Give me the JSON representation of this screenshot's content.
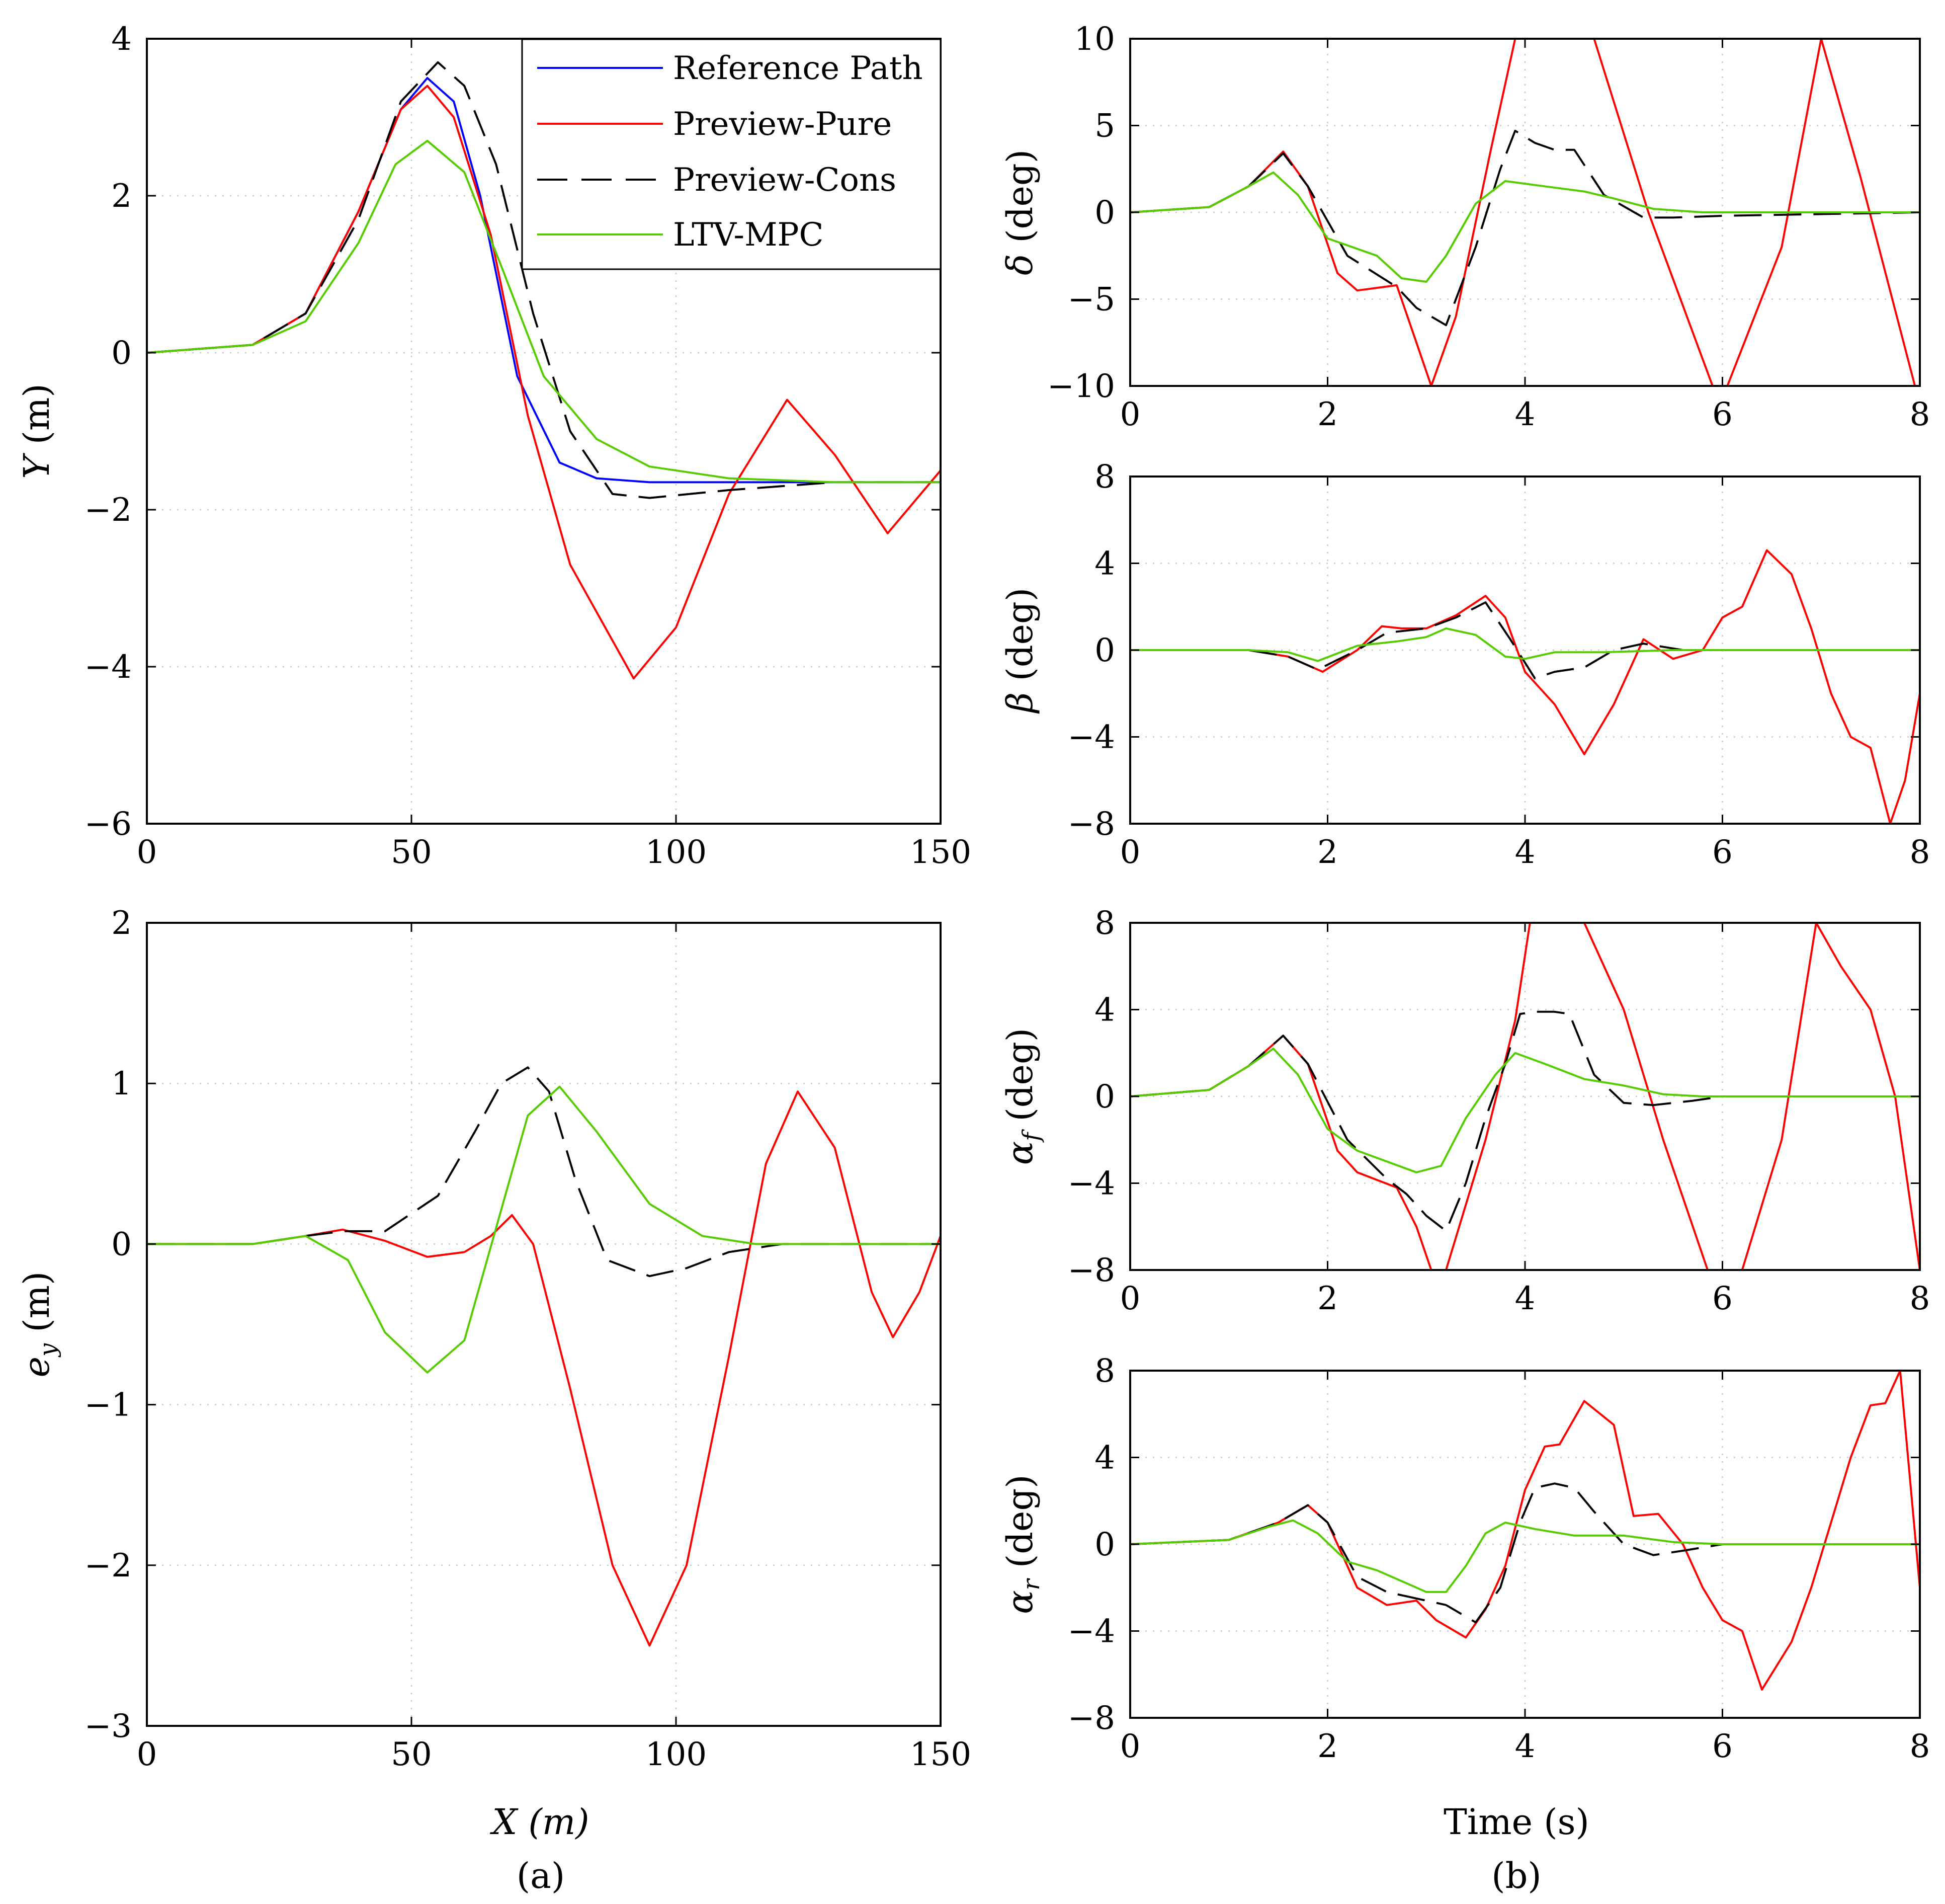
{
  "legend": {
    "entries": [
      {
        "label": "Reference Path",
        "color": "#0000ff",
        "dash": false
      },
      {
        "label": "Preview-Pure",
        "color": "#ff0000",
        "dash": false
      },
      {
        "label": "Preview-Cons",
        "color": "#000000",
        "dash": true
      },
      {
        "label": "LTV-MPC",
        "color": "#55cc00",
        "dash": false
      }
    ]
  },
  "subcaptions": {
    "a": "(a)",
    "b": "(b)"
  },
  "xlabel_left": "X (m)",
  "xlabel_right": "Time (s)",
  "chart_data": [
    {
      "id": "Y_vs_X",
      "type": "line",
      "xlabel": "",
      "ylabel": "Y (m)",
      "xlim": [
        0,
        150
      ],
      "ylim": [
        -6,
        4
      ],
      "xticks": [
        0,
        50,
        100,
        150
      ],
      "yticks": [
        -6,
        -4,
        -2,
        0,
        2,
        4
      ],
      "series": [
        {
          "name": "Reference Path",
          "x": [
            0,
            20,
            30,
            40,
            48,
            53,
            58,
            63,
            70,
            78,
            85,
            95,
            110,
            150
          ],
          "y": [
            0,
            0.1,
            0.5,
            1.8,
            3.1,
            3.5,
            3.2,
            2.0,
            -0.3,
            -1.4,
            -1.6,
            -1.65,
            -1.65,
            -1.65
          ]
        },
        {
          "name": "Preview-Pure",
          "x": [
            0,
            20,
            30,
            40,
            48,
            53,
            58,
            65,
            72,
            80,
            92,
            100,
            110,
            121,
            130,
            140,
            150
          ],
          "y": [
            0,
            0.1,
            0.5,
            1.8,
            3.1,
            3.4,
            3.0,
            1.5,
            -0.8,
            -2.7,
            -4.15,
            -3.5,
            -1.8,
            -0.6,
            -1.3,
            -2.3,
            -1.5
          ]
        },
        {
          "name": "Preview-Cons",
          "x": [
            0,
            20,
            30,
            40,
            48,
            55,
            60,
            66,
            73,
            80,
            88,
            95,
            110,
            130,
            150
          ],
          "y": [
            0,
            0.1,
            0.5,
            1.7,
            3.2,
            3.7,
            3.4,
            2.4,
            0.5,
            -1.0,
            -1.8,
            -1.85,
            -1.75,
            -1.65,
            -1.65
          ]
        },
        {
          "name": "LTV-MPC",
          "x": [
            0,
            20,
            30,
            40,
            47,
            53,
            60,
            67,
            75,
            85,
            95,
            110,
            130,
            150
          ],
          "y": [
            0,
            0.1,
            0.4,
            1.4,
            2.4,
            2.7,
            2.3,
            1.1,
            -0.3,
            -1.1,
            -1.45,
            -1.6,
            -1.65,
            -1.65
          ]
        }
      ]
    },
    {
      "id": "ey_vs_X",
      "type": "line",
      "xlabel": "X (m)",
      "ylabel": "e_y (m)",
      "xlim": [
        0,
        150
      ],
      "ylim": [
        -3,
        2
      ],
      "xticks": [
        0,
        50,
        100,
        150
      ],
      "yticks": [
        -3,
        -2,
        -1,
        0,
        1,
        2
      ],
      "series": [
        {
          "name": "Preview-Pure",
          "x": [
            0,
            20,
            30,
            37,
            45,
            53,
            60,
            65,
            69,
            73,
            80,
            88,
            95,
            102,
            110,
            117,
            123,
            130,
            137,
            141,
            146,
            150
          ],
          "y": [
            0,
            0,
            0.05,
            0.09,
            0.02,
            -0.08,
            -0.05,
            0.05,
            0.18,
            0.0,
            -0.9,
            -2.0,
            -2.5,
            -2.0,
            -0.7,
            0.5,
            0.95,
            0.6,
            -0.3,
            -0.58,
            -0.3,
            0.05
          ]
        },
        {
          "name": "Preview-Cons",
          "x": [
            0,
            20,
            30,
            37,
            45,
            55,
            62,
            67,
            72,
            76,
            81,
            87,
            95,
            102,
            110,
            120,
            135,
            150
          ],
          "y": [
            0,
            0,
            0.05,
            0.08,
            0.08,
            0.3,
            0.7,
            1.0,
            1.1,
            0.95,
            0.4,
            -0.1,
            -0.2,
            -0.15,
            -0.05,
            0,
            0,
            0
          ]
        },
        {
          "name": "LTV-MPC",
          "x": [
            0,
            20,
            30,
            38,
            45,
            53,
            60,
            66,
            72,
            78,
            85,
            95,
            105,
            115,
            130,
            150
          ],
          "y": [
            0,
            0,
            0.05,
            -0.1,
            -0.55,
            -0.8,
            -0.6,
            0.1,
            0.8,
            0.98,
            0.7,
            0.25,
            0.05,
            0,
            0,
            0
          ]
        }
      ]
    },
    {
      "id": "delta_vs_t",
      "type": "line",
      "xlabel": "",
      "ylabel": "δ (deg)",
      "xlim": [
        0,
        8
      ],
      "ylim": [
        -10,
        10
      ],
      "xticks": [
        0,
        2,
        4,
        6,
        8
      ],
      "yticks": [
        -10,
        -5,
        0,
        5,
        10
      ],
      "series": [
        {
          "name": "Preview-Pure",
          "x": [
            0,
            0.8,
            1.2,
            1.55,
            1.8,
            2.1,
            2.3,
            2.7,
            2.9,
            3.05,
            3.3,
            3.65,
            3.9,
            4.7,
            5.25,
            5.9,
            6.05,
            6.6,
            7.0,
            7.4,
            7.95
          ],
          "y": [
            0,
            0.3,
            1.5,
            3.5,
            1.5,
            -3.5,
            -4.5,
            -4.2,
            -7.5,
            -10,
            -6,
            3.5,
            10,
            10,
            0,
            -10,
            -10,
            -2,
            10,
            2,
            -10
          ]
        },
        {
          "name": "Preview-Cons",
          "x": [
            0,
            0.8,
            1.2,
            1.55,
            1.8,
            2.2,
            2.7,
            2.9,
            3.2,
            3.5,
            3.75,
            3.9,
            4.1,
            4.3,
            4.5,
            4.8,
            5.2,
            5.5,
            6.0,
            8.0
          ],
          "y": [
            0,
            0.3,
            1.5,
            3.4,
            1.5,
            -2.5,
            -4.3,
            -5.5,
            -6.5,
            -2,
            2.5,
            4.7,
            4,
            3.6,
            3.6,
            1,
            -0.3,
            -0.3,
            -0.2,
            0
          ]
        },
        {
          "name": "LTV-MPC",
          "x": [
            0,
            0.8,
            1.2,
            1.45,
            1.7,
            2.0,
            2.5,
            2.75,
            3.0,
            3.2,
            3.5,
            3.8,
            4.2,
            4.6,
            4.9,
            5.3,
            5.8,
            8.0
          ],
          "y": [
            0,
            0.3,
            1.5,
            2.3,
            1.0,
            -1.5,
            -2.5,
            -3.8,
            -4.0,
            -2.5,
            0.5,
            1.8,
            1.5,
            1.2,
            0.8,
            0.2,
            0,
            0
          ]
        }
      ]
    },
    {
      "id": "beta_vs_t",
      "type": "line",
      "xlabel": "",
      "ylabel": "β (deg)",
      "xlim": [
        0,
        8
      ],
      "ylim": [
        -8,
        8
      ],
      "xticks": [
        0,
        2,
        4,
        6,
        8
      ],
      "yticks": [
        -8,
        -4,
        0,
        4,
        8
      ],
      "series": [
        {
          "name": "Preview-Pure",
          "x": [
            0,
            1.2,
            1.6,
            1.95,
            2.3,
            2.55,
            2.75,
            3.0,
            3.3,
            3.6,
            3.8,
            4.0,
            4.2,
            4.3,
            4.6,
            4.9,
            5.2,
            5.5,
            5.8,
            6.0,
            6.2,
            6.45,
            6.7,
            6.9,
            7.1,
            7.3,
            7.5,
            7.7,
            7.85,
            8.0
          ],
          "y": [
            0,
            0,
            -0.3,
            -1.0,
            0,
            1.1,
            1.0,
            1.0,
            1.6,
            2.5,
            1.5,
            -1.0,
            -2.0,
            -2.5,
            -4.8,
            -2.5,
            0.5,
            -0.4,
            0,
            1.5,
            2.0,
            4.6,
            3.5,
            1.0,
            -2.0,
            -4.0,
            -4.5,
            -8,
            -6,
            -2
          ]
        },
        {
          "name": "Preview-Cons",
          "x": [
            0,
            1.2,
            1.6,
            1.9,
            2.3,
            2.6,
            3.0,
            3.3,
            3.6,
            3.85,
            4.1,
            4.3,
            4.6,
            4.9,
            5.2,
            5.6,
            6.0,
            8.0
          ],
          "y": [
            0,
            0,
            -0.3,
            -0.9,
            0,
            0.8,
            1.0,
            1.5,
            2.2,
            0.5,
            -1.3,
            -1.0,
            -0.8,
            0,
            0.3,
            0,
            0,
            0
          ]
        },
        {
          "name": "LTV-MPC",
          "x": [
            0,
            1.2,
            1.6,
            1.9,
            2.3,
            2.7,
            3.0,
            3.2,
            3.5,
            3.8,
            4.0,
            4.3,
            4.8,
            5.5,
            8.0
          ],
          "y": [
            0,
            0,
            -0.1,
            -0.5,
            0.2,
            0.4,
            0.6,
            1.0,
            0.7,
            -0.3,
            -0.4,
            -0.1,
            -0.1,
            0,
            0
          ]
        }
      ]
    },
    {
      "id": "alphaf_vs_t",
      "type": "line",
      "xlabel": "",
      "ylabel": "α_f (deg)",
      "xlim": [
        0,
        8
      ],
      "ylim": [
        -8,
        8
      ],
      "xticks": [
        0,
        2,
        4,
        6,
        8
      ],
      "yticks": [
        -8,
        -4,
        0,
        4,
        8
      ],
      "series": [
        {
          "name": "Preview-Pure",
          "x": [
            0,
            0.8,
            1.2,
            1.55,
            1.8,
            2.1,
            2.3,
            2.7,
            2.9,
            3.05,
            3.2,
            3.6,
            3.9,
            4.05,
            4.6,
            5.0,
            5.4,
            5.85,
            6.2,
            6.6,
            6.95,
            7.2,
            7.5,
            7.75,
            8.0
          ],
          "y": [
            0,
            0.3,
            1.4,
            2.8,
            1.5,
            -2.5,
            -3.5,
            -4.2,
            -6,
            -8,
            -8,
            -2,
            3.5,
            8,
            8,
            4,
            -2,
            -8,
            -8,
            -2,
            8,
            6,
            4,
            0,
            -8
          ]
        },
        {
          "name": "Preview-Cons",
          "x": [
            0,
            0.8,
            1.2,
            1.55,
            1.8,
            2.2,
            2.6,
            2.8,
            3.0,
            3.2,
            3.4,
            3.6,
            3.8,
            3.95,
            4.1,
            4.3,
            4.45,
            4.7,
            5.0,
            5.3,
            5.7,
            6.0,
            8.0
          ],
          "y": [
            0,
            0.3,
            1.4,
            2.8,
            1.5,
            -2.0,
            -3.8,
            -4.5,
            -5.5,
            -6.2,
            -4.0,
            -1.0,
            1.5,
            3.8,
            3.9,
            3.9,
            3.8,
            1.0,
            -0.3,
            -0.4,
            -0.2,
            0,
            0
          ]
        },
        {
          "name": "LTV-MPC",
          "x": [
            0,
            0.8,
            1.2,
            1.45,
            1.7,
            2.0,
            2.3,
            2.6,
            2.9,
            3.15,
            3.4,
            3.7,
            3.9,
            4.2,
            4.6,
            5.0,
            5.4,
            5.8,
            8.0
          ],
          "y": [
            0,
            0.3,
            1.4,
            2.2,
            1.0,
            -1.5,
            -2.5,
            -3.0,
            -3.5,
            -3.2,
            -1.0,
            1.0,
            2.0,
            1.5,
            0.8,
            0.5,
            0.1,
            0,
            0
          ]
        }
      ]
    },
    {
      "id": "alphar_vs_t",
      "type": "line",
      "xlabel": "Time (s)",
      "ylabel": "α_r (deg)",
      "xlim": [
        0,
        8
      ],
      "ylim": [
        -8,
        8
      ],
      "xticks": [
        0,
        2,
        4,
        6,
        8
      ],
      "yticks": [
        -8,
        -4,
        0,
        4,
        8
      ],
      "series": [
        {
          "name": "Preview-Pure",
          "x": [
            0,
            1.0,
            1.5,
            1.8,
            2.0,
            2.3,
            2.6,
            2.9,
            3.1,
            3.4,
            3.6,
            3.8,
            4.0,
            4.2,
            4.35,
            4.6,
            4.9,
            5.1,
            5.35,
            5.6,
            5.8,
            6.0,
            6.2,
            6.4,
            6.7,
            6.9,
            7.1,
            7.3,
            7.5,
            7.65,
            7.8,
            8.0
          ],
          "y": [
            0,
            0.2,
            1.0,
            1.8,
            1.0,
            -2.0,
            -2.8,
            -2.6,
            -3.5,
            -4.3,
            -3.0,
            -1.0,
            2.5,
            4.5,
            4.6,
            6.6,
            5.5,
            1.3,
            1.4,
            0,
            -2.0,
            -3.5,
            -4.0,
            -6.7,
            -4.5,
            -2.0,
            1.0,
            4.0,
            6.4,
            6.5,
            8,
            -2
          ]
        },
        {
          "name": "Preview-Cons",
          "x": [
            0,
            1.0,
            1.5,
            1.8,
            2.0,
            2.3,
            2.6,
            2.9,
            3.2,
            3.5,
            3.75,
            3.95,
            4.1,
            4.3,
            4.5,
            4.7,
            5.0,
            5.3,
            5.6,
            6.0,
            8.0
          ],
          "y": [
            0,
            0.2,
            1.0,
            1.8,
            1.0,
            -1.5,
            -2.2,
            -2.5,
            -2.8,
            -3.6,
            -2.0,
            1.0,
            2.6,
            2.8,
            2.6,
            1.5,
            0,
            -0.5,
            -0.3,
            0,
            0
          ]
        },
        {
          "name": "LTV-MPC",
          "x": [
            0,
            1.0,
            1.4,
            1.65,
            1.9,
            2.2,
            2.5,
            2.8,
            3.0,
            3.2,
            3.4,
            3.6,
            3.8,
            4.1,
            4.5,
            5.0,
            5.5,
            6.0,
            8.0
          ],
          "y": [
            0,
            0.2,
            0.8,
            1.1,
            0.5,
            -0.8,
            -1.2,
            -1.8,
            -2.2,
            -2.2,
            -1.0,
            0.5,
            1.0,
            0.7,
            0.4,
            0.4,
            0.1,
            0,
            0
          ]
        }
      ]
    }
  ]
}
